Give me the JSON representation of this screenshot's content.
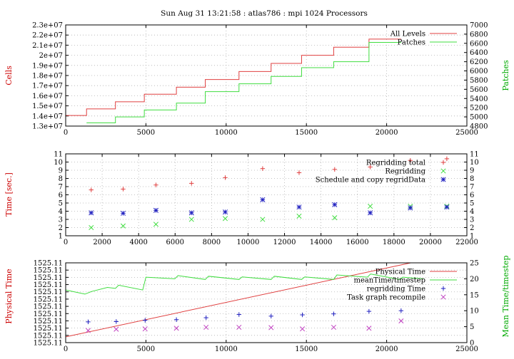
{
  "title": "Sun Aug 31 13:21:58 : atlas786 : mpi 1024 Processors",
  "colors": {
    "red": "#e04040",
    "green": "#40dd40",
    "blue": "#2020c0",
    "magenta": "#c040c0",
    "axis_red": "#cc0000",
    "axis_green": "#00aa00"
  },
  "chart_data": [
    {
      "type": "line",
      "ylabel": "Cells",
      "y2label": "Patches",
      "xlim": [
        0,
        25000
      ],
      "ylim": [
        13000000,
        23000000
      ],
      "y2lim": [
        4800,
        7000
      ],
      "xticks": [
        "0",
        "5000",
        "10000",
        "15000",
        "20000",
        "25000"
      ],
      "yticks": [
        "1.3e+07",
        "1.4e+07",
        "1.5e+07",
        "1.6e+07",
        "1.7e+07",
        "1.8e+07",
        "1.9e+07",
        "2e+07",
        "2.1e+07",
        "2.2e+07",
        "2.3e+07"
      ],
      "y2ticks": [
        "4800",
        "5000",
        "5200",
        "5400",
        "5600",
        "5800",
        "6000",
        "6200",
        "6400",
        "6600",
        "6800",
        "7000"
      ],
      "grid": true,
      "legend_position": "top-right",
      "series": [
        {
          "name": "All Levels",
          "axis": "left",
          "style": "step",
          "color": "#e04040",
          "x": [
            0,
            1300,
            3100,
            4900,
            6900,
            8700,
            10800,
            12800,
            14700,
            16700,
            18900,
            20900
          ],
          "y": [
            14050000,
            14700000,
            15400000,
            16150000,
            16850000,
            17600000,
            18400000,
            19200000,
            20000000,
            20800000,
            21600000,
            21600000
          ]
        },
        {
          "name": "Patches",
          "axis": "right",
          "style": "step",
          "color": "#40dd40",
          "x": [
            1300,
            3100,
            4900,
            6900,
            8700,
            10800,
            12800,
            14700,
            16700,
            18900,
            20900
          ],
          "y": [
            4870,
            5000,
            5150,
            5300,
            5550,
            5720,
            5880,
            6070,
            6200,
            6620,
            6620
          ]
        }
      ]
    },
    {
      "type": "scatter",
      "ylabel": "Time [sec.]",
      "xlim": [
        0,
        22000
      ],
      "ylim": [
        1,
        11
      ],
      "y2lim": [
        1,
        11
      ],
      "xticks": [
        "0",
        "2000",
        "4000",
        "6000",
        "8000",
        "10000",
        "12000",
        "14000",
        "16000",
        "18000",
        "20000",
        "22000"
      ],
      "yticks": [
        "1",
        "2",
        "3",
        "4",
        "5",
        "6",
        "7",
        "8",
        "9",
        "10",
        "11"
      ],
      "y2ticks": [
        "1",
        "2",
        "3",
        "4",
        "5",
        "6",
        "7",
        "8",
        "9",
        "10",
        "11"
      ],
      "grid": true,
      "legend_position": "top-right",
      "series": [
        {
          "name": "Regridding total",
          "marker": "plus",
          "color": "#e04040",
          "x": [
            1400,
            3150,
            4950,
            6900,
            8750,
            10800,
            12800,
            14750,
            16700,
            18900,
            20900
          ],
          "y": [
            6.6,
            6.7,
            7.2,
            7.4,
            8.1,
            9.2,
            8.7,
            9.1,
            9.4,
            10.2,
            10.4
          ]
        },
        {
          "name": "Regridding",
          "marker": "cross",
          "color": "#40dd40",
          "x": [
            1400,
            3150,
            4950,
            6900,
            8750,
            10800,
            12800,
            14750,
            16700,
            18900,
            20900
          ],
          "y": [
            2.0,
            2.2,
            2.4,
            3.0,
            3.1,
            3.0,
            3.4,
            3.2,
            4.6,
            4.6,
            4.6
          ]
        },
        {
          "name": "Schedule and copy regridData",
          "marker": "star",
          "color": "#2020c0",
          "x": [
            1400,
            3150,
            4950,
            6900,
            8750,
            10800,
            12800,
            14750,
            16700,
            18900,
            20900
          ],
          "y": [
            3.8,
            3.75,
            4.1,
            3.8,
            3.9,
            5.4,
            4.5,
            4.8,
            3.8,
            4.4,
            4.5
          ]
        }
      ]
    },
    {
      "type": "line",
      "ylabel": "Physical Time",
      "y2label": "Mean Time/timestep",
      "xlim": [
        0,
        25000
      ],
      "ylim": [
        0,
        11
      ],
      "y2lim": [
        0,
        25
      ],
      "xticks": [
        "0",
        "5000",
        "10000",
        "15000",
        "20000",
        "25000"
      ],
      "yticks": [
        "1525.11",
        "1525.11",
        "1525.11",
        "1525.11",
        "1525.11",
        "1525.11",
        "1525.11",
        "1525.11",
        "1525.11",
        "1525.11",
        "1525.11",
        "1525.11"
      ],
      "y2ticks": [
        "0",
        "5",
        "10",
        "15",
        "20",
        "25"
      ],
      "grid": true,
      "legend_position": "top-right",
      "series": [
        {
          "name": "Physical Time",
          "axis": "left",
          "marker": "line",
          "color": "#e04040",
          "x": [
            0,
            21500
          ],
          "y": [
            0.8,
            11
          ]
        },
        {
          "name": "meanTime/timestep",
          "axis": "right",
          "marker": "line",
          "color": "#40dd40",
          "x": [
            0,
            1200,
            1600,
            2600,
            3100,
            3300,
            4800,
            5000,
            6800,
            7000,
            8700,
            8900,
            10800,
            11000,
            12800,
            13000,
            14700,
            14900,
            16700,
            16900,
            18800,
            19000,
            20800,
            21000,
            22300
          ],
          "y": [
            16.5,
            15.2,
            16.0,
            17.3,
            17.0,
            18.0,
            16.5,
            20.5,
            20.0,
            21.0,
            19.8,
            20.8,
            19.8,
            20.6,
            19.8,
            20.8,
            19.8,
            20.6,
            19.8,
            21.2,
            20.5,
            21.5,
            19.8,
            20.5,
            20.0
          ]
        },
        {
          "name": "regridding Time",
          "axis": "right",
          "marker": "plus",
          "color": "#2020c0",
          "x": [
            1400,
            3150,
            4950,
            6900,
            8750,
            10800,
            12800,
            14750,
            16700,
            18900,
            20900
          ],
          "y": [
            6.5,
            6.6,
            7.0,
            7.2,
            7.8,
            8.8,
            8.3,
            8.7,
            9.0,
            9.8,
            10.0
          ]
        },
        {
          "name": "Task graph recompile",
          "axis": "right",
          "marker": "cross",
          "color": "#c040c0",
          "x": [
            1400,
            3150,
            4950,
            6900,
            8750,
            10800,
            12800,
            14750,
            16700,
            18900,
            20900
          ],
          "y": [
            3.8,
            4.2,
            4.3,
            4.5,
            4.8,
            4.8,
            4.7,
            4.3,
            4.8,
            4.5,
            6.8
          ]
        }
      ]
    }
  ]
}
